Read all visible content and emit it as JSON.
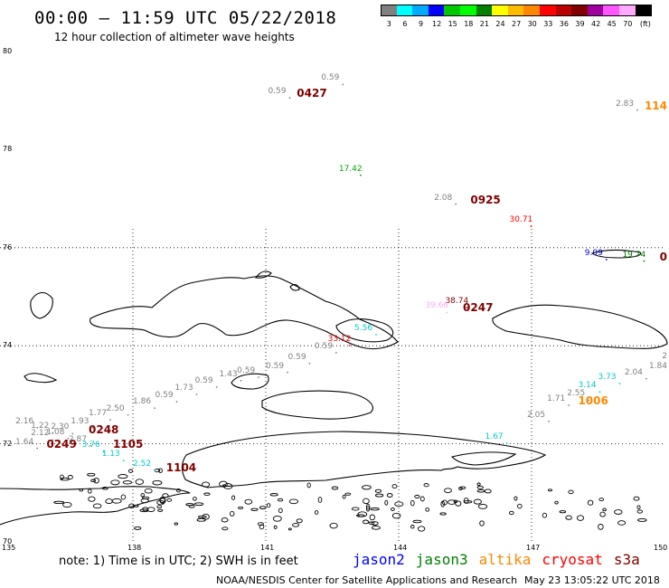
{
  "header": {
    "title": "00:00 – 11:59 UTC 05/22/2018",
    "subtitle": "12 hour collection of altimeter wave heights"
  },
  "color_scale": {
    "colors": [
      "#808080",
      "#00ffff",
      "#00aaff",
      "#0000ff",
      "#00c800",
      "#00ff00",
      "#008000",
      "#ffff00",
      "#ffbb00",
      "#ff8800",
      "#ff0000",
      "#bb0000",
      "#800000",
      "#a000a0",
      "#ff55ff",
      "#ffaaff",
      "#000000"
    ],
    "labels": [
      "3",
      "6",
      "9",
      "12",
      "15",
      "18",
      "21",
      "24",
      "27",
      "30",
      "33",
      "36",
      "39",
      "42",
      "45",
      "70",
      "(ft)"
    ]
  },
  "axes": {
    "x_ticks": [
      "135",
      "138",
      "141",
      "144",
      "147",
      "150"
    ],
    "y_ticks": [
      "80",
      "78",
      "76",
      "74",
      "72",
      "70"
    ],
    "lon_range": [
      135,
      150
    ],
    "lat_range": [
      70,
      80
    ]
  },
  "observations": [
    {
      "text": "0.59",
      "lon": 141.05,
      "lat": 79.15,
      "color": "#808080"
    },
    {
      "text": "0427",
      "lon": 141.7,
      "lat": 79.15,
      "color": "#800000",
      "time": true
    },
    {
      "text": "0.59",
      "lon": 142.25,
      "lat": 79.42,
      "color": "#808080"
    },
    {
      "text": "2.83",
      "lon": 148.9,
      "lat": 78.9,
      "color": "#808080"
    },
    {
      "text": "114",
      "lon": 149.6,
      "lat": 78.9,
      "color": "#ff8800",
      "time": true
    },
    {
      "text": "17.42",
      "lon": 142.65,
      "lat": 77.57,
      "color": "#00aa00"
    },
    {
      "text": "2.08",
      "lon": 144.8,
      "lat": 76.98,
      "color": "#808080"
    },
    {
      "text": "0925",
      "lon": 145.62,
      "lat": 76.98,
      "color": "#800000",
      "time": true
    },
    {
      "text": "30.71",
      "lon": 146.5,
      "lat": 76.53,
      "color": "#ff0000"
    },
    {
      "text": "9.09",
      "lon": 148.2,
      "lat": 75.85,
      "color": "#0000cc"
    },
    {
      "text": "19.74",
      "lon": 149.05,
      "lat": 75.82,
      "color": "#008000"
    },
    {
      "text": "0",
      "lon": 149.95,
      "lat": 75.82,
      "color": "#800000",
      "time": true
    },
    {
      "text": "38.74",
      "lon": 145.05,
      "lat": 74.87,
      "color": "#800000"
    },
    {
      "text": "39.66",
      "lon": 144.6,
      "lat": 74.77,
      "color": "#ffaaff"
    },
    {
      "text": "0247",
      "lon": 145.45,
      "lat": 74.77,
      "color": "#800000",
      "time": true
    },
    {
      "text": "5.56",
      "lon": 143.0,
      "lat": 74.32,
      "color": "#00cccc"
    },
    {
      "text": "33.12",
      "lon": 142.4,
      "lat": 74.1,
      "color": "#ff0000"
    },
    {
      "text": "0.59",
      "lon": 142.1,
      "lat": 73.95,
      "color": "#808080"
    },
    {
      "text": "0.59",
      "lon": 141.5,
      "lat": 73.73,
      "color": "#808080"
    },
    {
      "text": "0.59",
      "lon": 141.0,
      "lat": 73.55,
      "color": "#808080"
    },
    {
      "text": "0.59",
      "lon": 140.35,
      "lat": 73.45,
      "color": "#808080"
    },
    {
      "text": "1.43",
      "lon": 139.95,
      "lat": 73.38,
      "color": "#808080"
    },
    {
      "text": "0.59",
      "lon": 139.4,
      "lat": 73.25,
      "color": "#808080"
    },
    {
      "text": "1.73",
      "lon": 138.95,
      "lat": 73.1,
      "color": "#808080"
    },
    {
      "text": "0.59",
      "lon": 138.5,
      "lat": 72.95,
      "color": "#808080"
    },
    {
      "text": "1.86",
      "lon": 138.0,
      "lat": 72.82,
      "color": "#808080"
    },
    {
      "text": "2.50",
      "lon": 137.4,
      "lat": 72.68,
      "color": "#808080"
    },
    {
      "text": "1.77",
      "lon": 137.0,
      "lat": 72.58,
      "color": "#808080"
    },
    {
      "text": "1.93",
      "lon": 136.6,
      "lat": 72.42,
      "color": "#808080"
    },
    {
      "text": "0248",
      "lon": 137.0,
      "lat": 72.28,
      "color": "#800000",
      "time": true
    },
    {
      "text": "2.16",
      "lon": 135.35,
      "lat": 72.42,
      "color": "#808080"
    },
    {
      "text": "1.22",
      "lon": 135.7,
      "lat": 72.32,
      "color": "#808080"
    },
    {
      "text": "2.30",
      "lon": 136.15,
      "lat": 72.3,
      "color": "#808080"
    },
    {
      "text": "2.12",
      "lon": 135.7,
      "lat": 72.17,
      "color": "#808080"
    },
    {
      "text": "1.08",
      "lon": 136.05,
      "lat": 72.2,
      "color": "#808080"
    },
    {
      "text": "1.64",
      "lon": 135.35,
      "lat": 72.0,
      "color": "#808080"
    },
    {
      "text": "2.87",
      "lon": 136.55,
      "lat": 72.05,
      "color": "#808080"
    },
    {
      "text": "0249",
      "lon": 136.05,
      "lat": 72.0,
      "color": "#800000",
      "time": true
    },
    {
      "text": "1105",
      "lon": 137.55,
      "lat": 72.0,
      "color": "#800000",
      "time": true
    },
    {
      "text": "3.76",
      "lon": 136.85,
      "lat": 71.93,
      "color": "#00cccc"
    },
    {
      "text": "1.13",
      "lon": 137.3,
      "lat": 71.75,
      "color": "#00cccc"
    },
    {
      "text": "1104",
      "lon": 138.75,
      "lat": 71.52,
      "color": "#800000",
      "time": true
    },
    {
      "text": "2.52",
      "lon": 138.0,
      "lat": 71.55,
      "color": "#00cccc"
    },
    {
      "text": "2.04",
      "lon": 149.1,
      "lat": 73.42,
      "color": "#808080"
    },
    {
      "text": "1.84",
      "lon": 149.75,
      "lat": 73.55,
      "color": "#808080"
    },
    {
      "text": "2",
      "lon": 150.1,
      "lat": 73.75,
      "color": "#808080"
    },
    {
      "text": "3.73",
      "lon": 148.5,
      "lat": 73.32,
      "color": "#00cccc"
    },
    {
      "text": "3.14",
      "lon": 148.05,
      "lat": 73.15,
      "color": "#00cccc"
    },
    {
      "text": "2.55",
      "lon": 147.8,
      "lat": 72.98,
      "color": "#808080"
    },
    {
      "text": "1.71",
      "lon": 147.35,
      "lat": 72.88,
      "color": "#808080"
    },
    {
      "text": "1006",
      "lon": 148.05,
      "lat": 72.88,
      "color": "#ff8800",
      "time": true
    },
    {
      "text": "2.05",
      "lon": 146.9,
      "lat": 72.55,
      "color": "#808080"
    },
    {
      "text": "1.67",
      "lon": 145.95,
      "lat": 72.1,
      "color": "#00cccc"
    }
  ],
  "note": "note:  1) Time is in UTC;  2) SWH is in feet",
  "legend": [
    {
      "name": "jason2",
      "color": "#0000ff"
    },
    {
      "name": "jason3",
      "color": "#008000"
    },
    {
      "name": "altika",
      "color": "#ff8800"
    },
    {
      "name": "cryosat",
      "color": "#ff0000"
    },
    {
      "name": "s3a",
      "color": "#800000"
    }
  ],
  "footer": {
    "credit": "NOAA/NESDIS Center for Satellite Applications and Research",
    "timestamp": "May 23 13:05:22 UTC 2018"
  }
}
